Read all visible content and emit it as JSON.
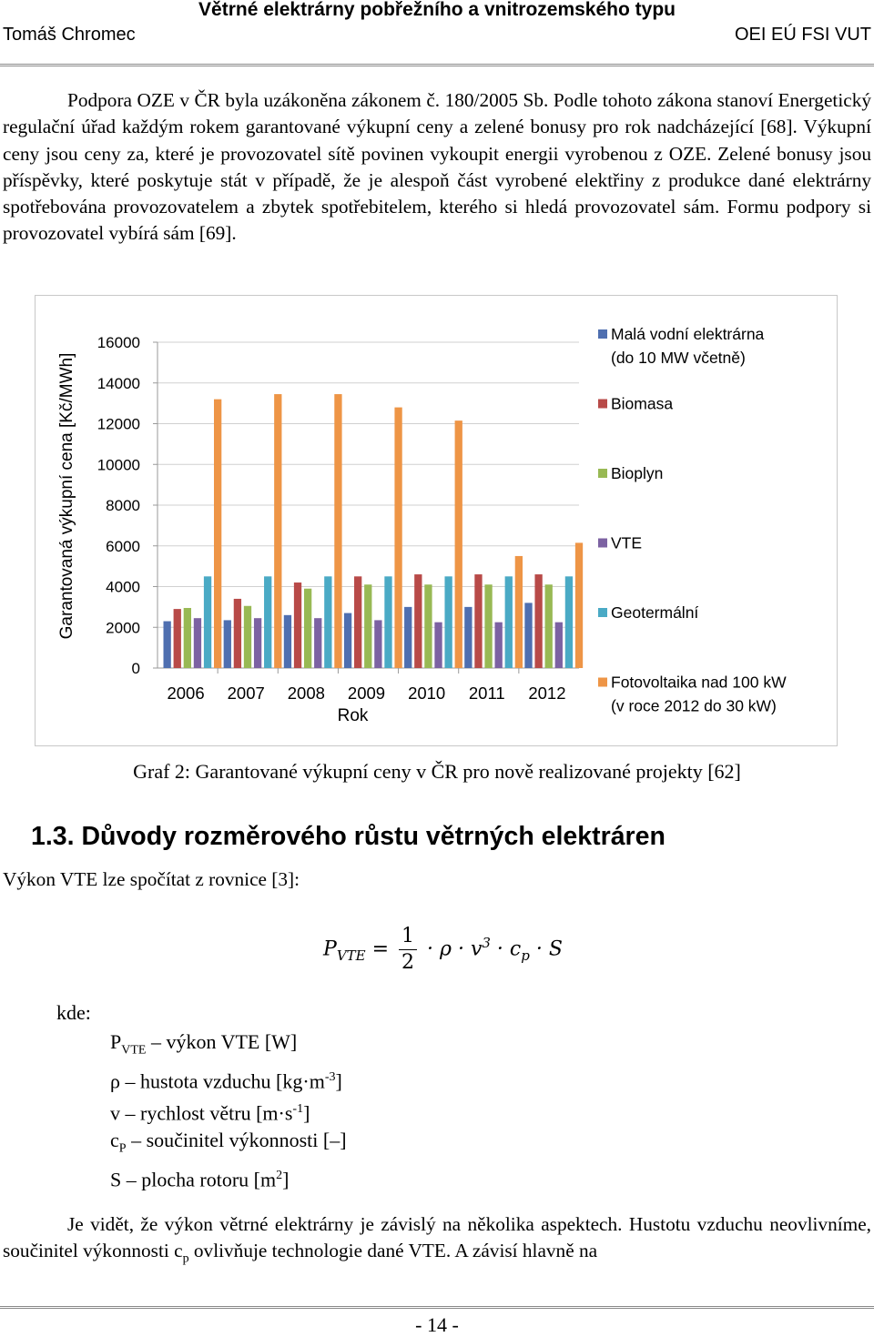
{
  "header": {
    "title": "Větrné elektrárny pobřežního a vnitrozemského typu",
    "author": "Tomáš Chromec",
    "institution": "OEI EÚ FSI VUT"
  },
  "paragraph1": "Podpora OZE v ČR byla uzákoněna zákonem č. 180/2005 Sb. Podle tohoto zákona stanoví Energetický regulační úřad každým rokem garantované výkupní ceny a zelené bonusy pro rok nadcházející [68]. Výkupní ceny jsou ceny za, které je provozovatel sítě povinen vykoupit energii vyrobenou z OZE. Zelené bonusy jsou příspěvky, které poskytuje stát v případě, že je alespoň část vyrobené elektřiny z produkce dané elektrárny spotřebována provozovatelem a zbytek spotřebitelem, kterého si hledá provozovatel sám. Formu podpory si provozovatel vybírá sám [69].",
  "chart_data": {
    "type": "bar",
    "title": "",
    "xlabel": "Rok",
    "ylabel": "Garantovaná výkupní cena  [Kč/MWh]",
    "ylim": [
      0,
      16000
    ],
    "yticks": [
      "0",
      "2000",
      "4000",
      "6000",
      "8000",
      "10000",
      "12000",
      "14000",
      "16000"
    ],
    "categories": [
      "2006",
      "2007",
      "2008",
      "2009",
      "2010",
      "2011",
      "2012"
    ],
    "legend_position": "right",
    "series": [
      {
        "name": "Malá vodní elektrárna (do 10 MW včetně)",
        "legend_lines": [
          "Malá vodní elektrárna",
          "(do 10 MW včetně)"
        ],
        "color": "#4f6fb0",
        "values": [
          2300,
          2350,
          2600,
          2700,
          3000,
          3000,
          3200
        ]
      },
      {
        "name": "Biomasa",
        "legend_lines": [
          "Biomasa"
        ],
        "color": "#b84a48",
        "values": [
          2900,
          3400,
          4200,
          4500,
          4600,
          4600,
          4600
        ]
      },
      {
        "name": "Bioplyn",
        "legend_lines": [
          "Bioplyn"
        ],
        "color": "#98b954",
        "values": [
          2950,
          3050,
          3900,
          4100,
          4100,
          4100,
          4100
        ]
      },
      {
        "name": "VTE",
        "legend_lines": [
          "VTE"
        ],
        "color": "#7c62a2",
        "values": [
          2450,
          2450,
          2450,
          2350,
          2250,
          2250,
          2250
        ]
      },
      {
        "name": "Geotermální",
        "legend_lines": [
          "Geotermální"
        ],
        "color": "#4aaac5",
        "values": [
          4500,
          4500,
          4500,
          4500,
          4500,
          4500,
          4500
        ]
      },
      {
        "name": "Fotovoltaika nad 100 kW (v roce 2012 do 30 kW)",
        "legend_lines": [
          "Fotovoltaika nad 100 kW",
          "(v roce 2012 do 30 kW)"
        ],
        "color": "#ee9546",
        "values": [
          13200,
          13450,
          13450,
          12800,
          12150,
          5500,
          6150
        ]
      }
    ]
  },
  "caption": "Graf 2: Garantované výkupní ceny v ČR pro nově realizované projekty [62]",
  "section": {
    "heading": "1.3. Důvody rozměrového růstu větrných elektráren"
  },
  "intro_text": "Výkon VTE lze spočítat z rovnice [3]:",
  "formula": {
    "lhs": "P",
    "lhs_sub": "VTE",
    "equals": "=",
    "numerator": "1",
    "denominator": "2",
    "rhs": "· ρ · v",
    "v_exp": "3",
    "cp_dot": "· c",
    "cp_sub": "p",
    "s_part": "· S"
  },
  "kde_label": "kde:",
  "definitions": {
    "p_sym": "P",
    "p_sub": "VTE",
    "p_text": " – výkon VTE [W]",
    "rho_text": "ρ – hustota vzduchu [kg·m",
    "rho_exp": "-3",
    "rho_close": "]",
    "v_text": "v – rychlost větru [m·s",
    "v_exp": "-1",
    "v_close": "]",
    "cp_sym": "c",
    "cp_sub": "P",
    "cp_text": " – součinitel výkonnosti [–]",
    "s_text": "S – plocha rotoru [m",
    "s_exp": "2",
    "s_close": "]"
  },
  "paragraph2_a": "Je vidět, že výkon větrné elektrárny je závislý na několika aspektech. Hustotu vzduchu neovlivníme, součinitel výkonnosti c",
  "paragraph2_sub": "p",
  "paragraph2_b": " ovlivňuje technologie dané VTE. A závisí hlavně na",
  "page_number": "- 14 -"
}
